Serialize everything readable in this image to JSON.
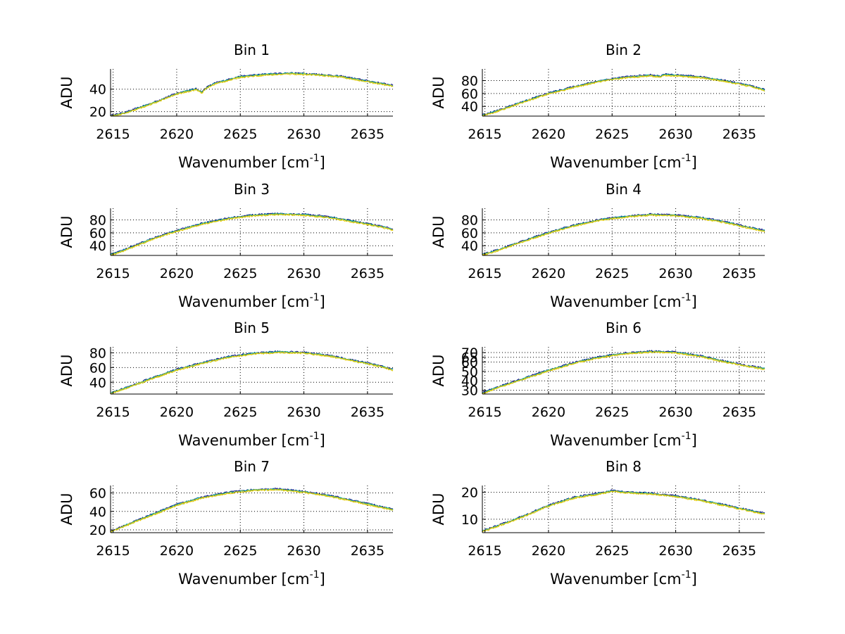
{
  "chart_data": {
    "type": "line",
    "figure": "spectra-by-bin",
    "series_colors": [
      "#000080",
      "#00a0a0",
      "#90c840",
      "#e8c800"
    ],
    "shared_x": {
      "label_main": "Wavenumber [cm",
      "label_sup": "-1",
      "label_end": "]",
      "xlim": [
        2614.8,
        2637
      ],
      "ticks": [
        2615,
        2620,
        2625,
        2630,
        2635
      ],
      "tick_labels": [
        "2615",
        "2620",
        "2625",
        "2630",
        "2635"
      ]
    },
    "ylabel": "ADU",
    "panels": [
      {
        "title": "Bin 1",
        "ylim": [
          16,
          58
        ],
        "yticks": [
          20,
          40
        ],
        "ytick_labels": [
          "20",
          "40"
        ],
        "x": [
          2614.8,
          2616,
          2618,
          2620,
          2621.5,
          2622,
          2622.3,
          2623,
          2625,
          2627,
          2629,
          2631,
          2633,
          2635,
          2637
        ],
        "values": [
          16,
          19,
          27,
          36,
          40,
          37,
          41,
          45,
          51,
          53,
          54,
          53,
          51,
          47,
          43
        ]
      },
      {
        "title": "Bin 2",
        "ylim": [
          25,
          98
        ],
        "yticks": [
          40,
          60,
          80
        ],
        "ytick_labels": [
          "40",
          "60",
          "80"
        ],
        "x": [
          2614.8,
          2616,
          2618,
          2620,
          2622,
          2624,
          2626,
          2628,
          2628.8,
          2629,
          2630,
          2632,
          2634,
          2636,
          2637
        ],
        "values": [
          26,
          33,
          47,
          60,
          70,
          79,
          85,
          88,
          86,
          89,
          88,
          85,
          79,
          71,
          65
        ]
      },
      {
        "title": "Bin 3",
        "ylim": [
          25,
          98
        ],
        "yticks": [
          40,
          60,
          80
        ],
        "ytick_labels": [
          "40",
          "60",
          "80"
        ],
        "x": [
          2614.8,
          2616,
          2618,
          2620,
          2622,
          2624,
          2626,
          2628,
          2630,
          2632,
          2634,
          2636,
          2637
        ],
        "values": [
          26,
          34,
          50,
          63,
          74,
          82,
          87,
          89,
          88,
          84,
          77,
          70,
          65
        ]
      },
      {
        "title": "Bin 4",
        "ylim": [
          25,
          98
        ],
        "yticks": [
          40,
          60,
          80
        ],
        "ytick_labels": [
          "40",
          "60",
          "80"
        ],
        "x": [
          2614.8,
          2616,
          2618,
          2620,
          2622,
          2624,
          2626,
          2628,
          2630,
          2632,
          2634,
          2636,
          2637
        ],
        "values": [
          26,
          33,
          47,
          60,
          71,
          80,
          85,
          88,
          87,
          83,
          76,
          67,
          63
        ]
      },
      {
        "title": "Bin 5",
        "ylim": [
          24,
          88
        ],
        "yticks": [
          40,
          60,
          80
        ],
        "ytick_labels": [
          "40",
          "60",
          "80"
        ],
        "x": [
          2614.8,
          2616,
          2618,
          2620,
          2622,
          2624,
          2626,
          2628,
          2630,
          2632,
          2634,
          2636,
          2637
        ],
        "values": [
          25,
          32,
          45,
          57,
          66,
          74,
          79,
          81,
          80,
          76,
          69,
          62,
          57
        ]
      },
      {
        "title": "Bin 6",
        "ylim": [
          26,
          76
        ],
        "yticks": [
          30,
          40,
          50,
          60,
          65,
          70
        ],
        "ytick_labels": [
          "30",
          "40",
          "50",
          "60",
          "65",
          "70"
        ],
        "x": [
          2614.8,
          2616,
          2618,
          2620,
          2622,
          2624,
          2626,
          2628,
          2630,
          2632,
          2634,
          2635.5,
          2637
        ],
        "values": [
          27,
          33,
          42,
          51,
          59,
          65,
          69,
          71,
          70,
          66,
          60,
          56,
          53
        ]
      },
      {
        "title": "Bin 7",
        "ylim": [
          17,
          68
        ],
        "yticks": [
          20,
          40,
          60
        ],
        "ytick_labels": [
          "20",
          "40",
          "60"
        ],
        "x": [
          2614.8,
          2616,
          2618,
          2620,
          2622,
          2624,
          2626,
          2628,
          2630,
          2632,
          2634,
          2636,
          2637
        ],
        "values": [
          18,
          25,
          36,
          47,
          55,
          60,
          63,
          64,
          61,
          57,
          51,
          45,
          42
        ]
      },
      {
        "title": "Bin 8",
        "ylim": [
          5,
          22.5
        ],
        "yticks": [
          10,
          20
        ],
        "ytick_labels": [
          "10",
          "20"
        ],
        "x": [
          2614.8,
          2616,
          2618,
          2620,
          2622,
          2624,
          2625,
          2626,
          2628,
          2630,
          2632,
          2634,
          2636,
          2637
        ],
        "values": [
          5.5,
          7.5,
          11,
          15,
          18,
          19.5,
          20.5,
          20,
          19.5,
          18.5,
          17,
          15,
          13,
          12
        ]
      }
    ]
  }
}
